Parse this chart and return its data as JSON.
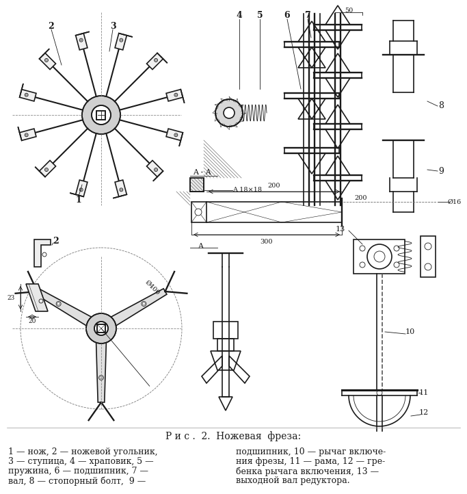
{
  "title": "Р и с .  2.  Ножевая  фреза:",
  "caption_line1": "1 — нож, 2 — ножевой угольник,",
  "caption_line2": "3 — ступица, 4 — храповик, 5 —",
  "caption_line3": "пружина, 6 — подшипник, 7 —",
  "caption_line4": "вал, 8 — стопорный болт,  9 —",
  "caption_right1": "подшипник, 10 — рычаг включе-",
  "caption_right2": "ния фрезы, 11 — рама, 12 — гре-",
  "caption_right3": "бенка рычага включения, 13 —",
  "caption_right4": "выходной вал редуктора.",
  "bg_color": "#ffffff",
  "line_color": "#1a1a1a"
}
